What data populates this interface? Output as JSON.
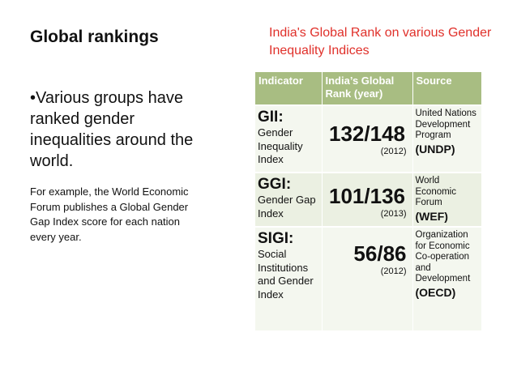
{
  "slide": {
    "title": "Global rankings",
    "bullet": "•Various groups have ranked gender inequalities around the world.",
    "example": "For example, the World Economic Forum publishes a Global Gender Gap Index score for each nation every year."
  },
  "figure": {
    "title": "India's Global Rank on various Gender Inequality Indices",
    "headers": {
      "indicator": "Indicator",
      "rank": "India’s Global Rank (year)",
      "source": "Source"
    },
    "rows": [
      {
        "abbr": "GII:",
        "fullname": "Gender Inequality Index",
        "rank": "132/148",
        "year": "(2012)",
        "source": "United Nations Development Program",
        "source_abbr": "(UNDP)"
      },
      {
        "abbr": "GGI:",
        "fullname": "Gender Gap Index",
        "rank": "101/136",
        "year": "(2013)",
        "source": "World Economic Forum",
        "source_abbr": "(WEF)"
      },
      {
        "abbr": "SIGI:",
        "fullname": "Social Institutions and Gender Index",
        "rank": "56/86",
        "year": "(2012)",
        "source": "Organization for Economic Co-operation and Development",
        "source_abbr": "(OECD)"
      }
    ]
  }
}
